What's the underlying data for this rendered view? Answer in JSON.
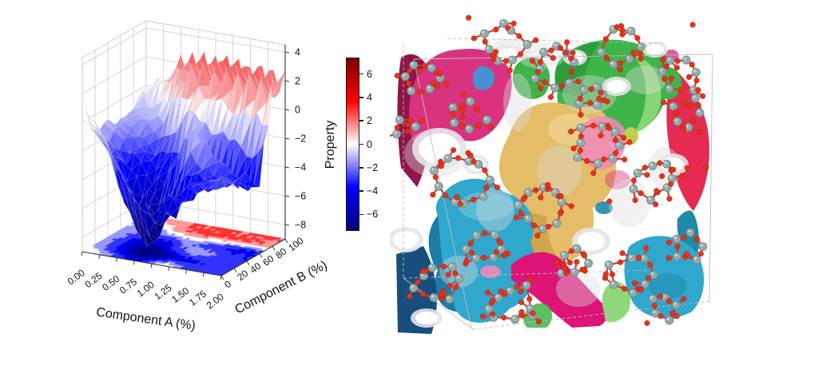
{
  "page": {
    "background": "#ffffff"
  },
  "chart_data": [
    {
      "type": "surface",
      "title": "",
      "xlabel": "Component A (%)",
      "ylabel": "Component B (%)",
      "x": [
        0,
        0.25,
        0.5,
        0.75,
        1.0,
        1.25,
        1.5,
        1.75,
        2.0
      ],
      "y": [
        0,
        20,
        40,
        60,
        80,
        100
      ],
      "z_grid": [
        [
          0.8,
          -0.5,
          -2.5,
          -4.5,
          -5.5,
          -4.5,
          -3.5,
          -3.0,
          -2.5
        ],
        [
          -0.8,
          -3.0,
          -6.5,
          -8.6,
          -7.2,
          -5.0,
          -4.0,
          -3.5,
          -3.0
        ],
        [
          -1.2,
          -3.5,
          -5.5,
          -6.0,
          -3.0,
          -0.8,
          -2.0,
          -3.0,
          -3.5
        ],
        [
          -1.0,
          -2.0,
          -3.0,
          -3.0,
          -1.5,
          -3.0,
          -4.0,
          -4.5,
          -4.0
        ],
        [
          -0.8,
          -1.2,
          0.0,
          2.2,
          2.5,
          2.3,
          2.5,
          2.2,
          2.0
        ],
        [
          -0.3,
          0.5,
          2.2,
          2.6,
          2.4,
          2.7,
          2.3,
          2.5,
          2.2
        ]
      ],
      "xlim": [
        0,
        2
      ],
      "ylim": [
        0,
        100
      ],
      "zlim": [
        -9,
        4.5
      ],
      "x_tick_labels": [
        "0.00",
        "0.25",
        "0.50",
        "0.75",
        "1.00",
        "1.25",
        "1.50",
        "1.75",
        "2.00"
      ],
      "y_tick_labels": [
        "0",
        "20",
        "40",
        "60",
        "80",
        "100"
      ],
      "z_tick_labels": [
        "4",
        "2",
        "0",
        "−2",
        "−4",
        "−6",
        "−8"
      ],
      "z_tick_values": [
        4,
        2,
        0,
        -2,
        -4,
        -6,
        -8
      ],
      "colormap": "seismic",
      "grid": true,
      "floor_contour": true,
      "colorbar": {
        "label": "Property",
        "tick_labels": [
          "6",
          "4",
          "2",
          "0",
          "−2",
          "−4",
          "−6"
        ],
        "tick_values": [
          6,
          4,
          2,
          0,
          -2,
          -4,
          -6
        ],
        "vmin": -7.4,
        "vmax": 7.4,
        "gradient": [
          "#7f0000",
          "#ff0000",
          "#ffffff",
          "#0000ff",
          "#00007f"
        ]
      }
    },
    {
      "type": "3d-structure",
      "description": "Porous crystal framework (ball-and-stick) with colored pore domains and translucent surface",
      "colors": {
        "magenta": "#d9337f",
        "crimson_dark": "#8f1549",
        "pink_light": "#ef8ab8",
        "magenta_bright": "#de1477",
        "green": "#3eb449",
        "green_light": "#8fd97a",
        "green_dark": "#1d8a33",
        "gold": "#e5bd68",
        "gold_dark": "#c49a3e",
        "gold_light": "#f3dc9e",
        "cyan": "#30a7cc",
        "cyan_dark": "#19749f",
        "cyan_light": "#7fd0e2",
        "navy": "#174e7e",
        "red_band": "#e62a52",
        "teal": "#1e8aa8",
        "blue_blob": "#4a8fd2",
        "yellow_green": "#bccf52",
        "surface_gray": "#dcdcde",
        "hole_rim": "#e6e6e8",
        "atom_si": "#94abac",
        "atom_si_edge": "#6f8a8c",
        "atom_o": "#e6321b",
        "atom_o_edge": "#9c1e0d",
        "bond": "#d23f2a",
        "box_line": "#bdbdbd"
      }
    }
  ]
}
